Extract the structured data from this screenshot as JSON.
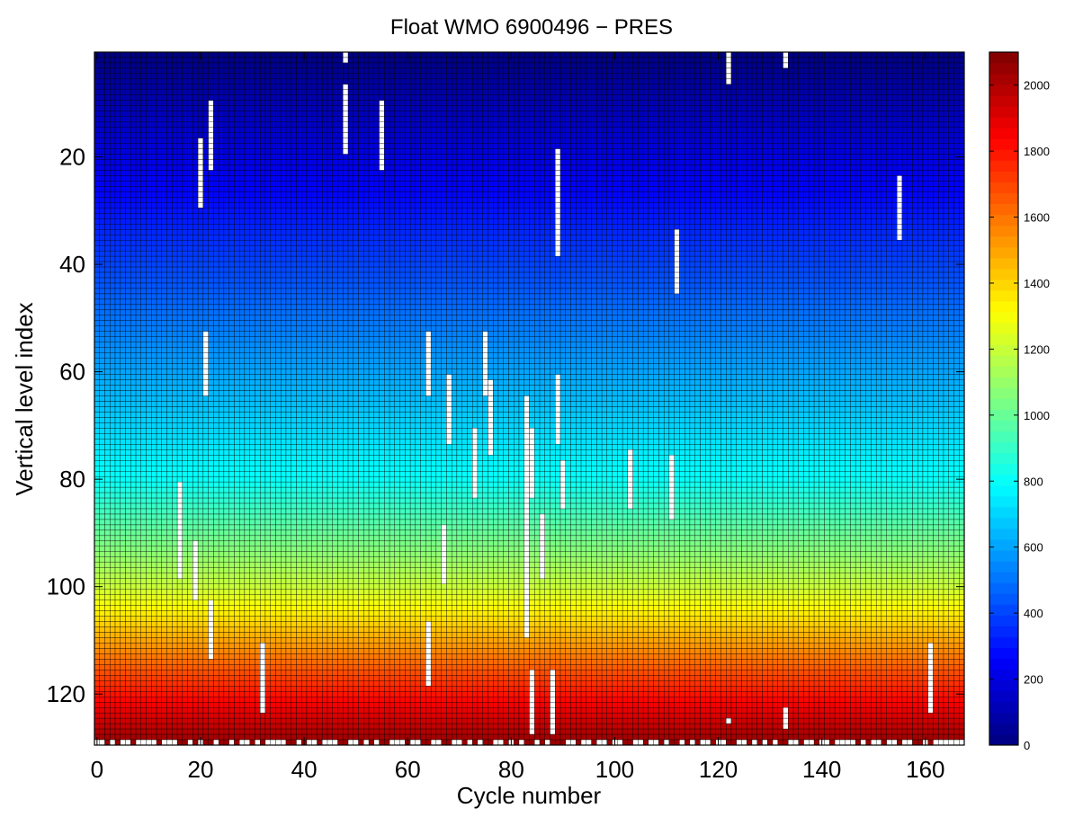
{
  "chart_data": {
    "type": "heatmap",
    "title": "Float WMO 6900496 − PRES",
    "xlabel": "Cycle number",
    "ylabel": "Vertical level index",
    "xlim": [
      -0.5,
      167.5
    ],
    "ylim": [
      0.5,
      129.5
    ],
    "y_reversed": true,
    "x_ticks": [
      0,
      20,
      40,
      60,
      80,
      100,
      120,
      140,
      160
    ],
    "y_ticks": [
      20,
      40,
      60,
      80,
      100,
      120
    ],
    "colorbar": {
      "min": 0,
      "max": 2100,
      "ticks": [
        0,
        200,
        400,
        600,
        800,
        1000,
        1200,
        1400,
        1600,
        1800,
        2000
      ],
      "colormap": "jet"
    },
    "grid": false,
    "cycles": 168,
    "levels": 129,
    "pressure_by_level": {
      "description_units": "dbar",
      "level_index": [
        1,
        10,
        20,
        30,
        40,
        50,
        60,
        70,
        80,
        90,
        100,
        110,
        120,
        129
      ],
      "pressure": [
        5,
        100,
        200,
        300,
        400,
        500,
        600,
        700,
        800,
        1000,
        1200,
        1500,
        1800,
        2050
      ]
    },
    "missing_segments": [
      {
        "cycle": 20,
        "from_level": 17,
        "to_level": 29
      },
      {
        "cycle": 21,
        "from_level": 53,
        "to_level": 64
      },
      {
        "cycle": 22,
        "from_level": 10,
        "to_level": 22
      },
      {
        "cycle": 22,
        "from_level": 103,
        "to_level": 113
      },
      {
        "cycle": 16,
        "from_level": 81,
        "to_level": 98
      },
      {
        "cycle": 19,
        "from_level": 92,
        "to_level": 102
      },
      {
        "cycle": 32,
        "from_level": 111,
        "to_level": 123
      },
      {
        "cycle": 48,
        "from_level": 1,
        "to_level": 2
      },
      {
        "cycle": 48,
        "from_level": 7,
        "to_level": 19
      },
      {
        "cycle": 55,
        "from_level": 10,
        "to_level": 22
      },
      {
        "cycle": 64,
        "from_level": 53,
        "to_level": 64
      },
      {
        "cycle": 64,
        "from_level": 107,
        "to_level": 118
      },
      {
        "cycle": 67,
        "from_level": 89,
        "to_level": 99
      },
      {
        "cycle": 68,
        "from_level": 61,
        "to_level": 73
      },
      {
        "cycle": 73,
        "from_level": 71,
        "to_level": 83
      },
      {
        "cycle": 75,
        "from_level": 53,
        "to_level": 64
      },
      {
        "cycle": 76,
        "from_level": 62,
        "to_level": 75
      },
      {
        "cycle": 83,
        "from_level": 65,
        "to_level": 109
      },
      {
        "cycle": 84,
        "from_level": 71,
        "to_level": 83
      },
      {
        "cycle": 84,
        "from_level": 116,
        "to_level": 127
      },
      {
        "cycle": 86,
        "from_level": 87,
        "to_level": 98
      },
      {
        "cycle": 88,
        "from_level": 116,
        "to_level": 127
      },
      {
        "cycle": 89,
        "from_level": 19,
        "to_level": 38
      },
      {
        "cycle": 89,
        "from_level": 61,
        "to_level": 73
      },
      {
        "cycle": 90,
        "from_level": 77,
        "to_level": 85
      },
      {
        "cycle": 103,
        "from_level": 75,
        "to_level": 85
      },
      {
        "cycle": 111,
        "from_level": 76,
        "to_level": 87
      },
      {
        "cycle": 112,
        "from_level": 34,
        "to_level": 45
      },
      {
        "cycle": 122,
        "from_level": 1,
        "to_level": 6
      },
      {
        "cycle": 122,
        "from_level": 125,
        "to_level": 125
      },
      {
        "cycle": 133,
        "from_level": 1,
        "to_level": 3
      },
      {
        "cycle": 133,
        "from_level": 123,
        "to_level": 126
      },
      {
        "cycle": 155,
        "from_level": 24,
        "to_level": 35
      },
      {
        "cycle": 161,
        "from_level": 111,
        "to_level": 123
      }
    ],
    "last_level_missing_cycles": [
      0,
      1,
      3,
      5,
      6,
      8,
      9,
      10,
      11,
      13,
      14,
      15,
      18,
      20,
      23,
      26,
      28,
      29,
      31,
      33,
      34,
      35,
      36,
      39,
      41,
      42,
      44,
      45,
      46,
      49,
      50,
      52,
      54,
      57,
      58,
      59,
      61,
      62,
      65,
      66,
      69,
      70,
      72,
      74,
      77,
      78,
      80,
      82,
      85,
      87,
      91,
      92,
      94,
      95,
      97,
      98,
      100,
      101,
      104,
      105,
      107,
      108,
      110,
      113,
      115,
      117,
      118,
      120,
      121,
      124,
      125,
      127,
      129,
      131,
      134,
      135,
      137,
      138,
      140,
      141,
      143,
      144,
      145,
      146,
      148,
      150,
      151,
      153,
      154,
      156,
      157,
      160,
      162,
      163,
      164,
      165,
      166,
      167
    ]
  }
}
